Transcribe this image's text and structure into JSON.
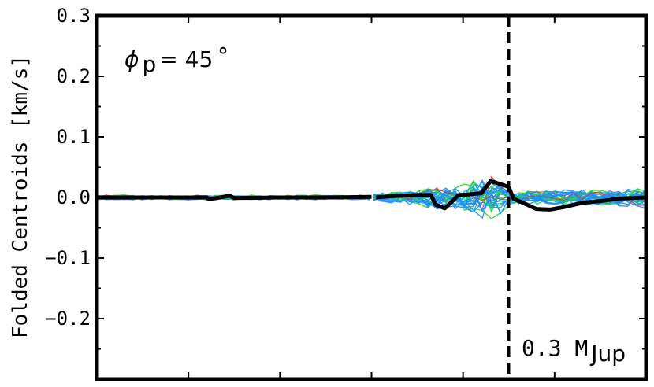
{
  "chart_data": {
    "type": "line",
    "title": "",
    "xlabel": "",
    "ylabel": "Folded Centroids [km/s]",
    "ylim": [
      -0.3,
      0.3
    ],
    "xlim": [
      0,
      6
    ],
    "yticks": [
      -0.2,
      -0.1,
      0.0,
      0.1,
      0.2,
      0.3
    ],
    "ytick_labels": [
      "−0.2",
      "−0.1",
      "0.0",
      "0.1",
      "0.2",
      "0.3"
    ],
    "xticks": [
      1,
      2,
      3,
      4,
      5
    ],
    "grid": false,
    "phase_annotation": {
      "phi_symbol": "ϕ",
      "phi_sub": "p",
      "equals": " = 45",
      "degree": "∘"
    },
    "mass_annotation": {
      "value": "0.3 M",
      "sub": "Jup"
    },
    "vline_x": 4.5,
    "mean_series": {
      "name": "",
      "color": "#000000",
      "segments": [
        [
          [
            0,
            0
          ],
          [
            0.5,
            0
          ],
          [
            1,
            0
          ],
          [
            1.2,
            0
          ],
          [
            1.22,
            -0.003
          ],
          [
            1.35,
            0
          ],
          [
            1.45,
            0.003
          ],
          [
            1.5,
            -0.001
          ],
          [
            2,
            0
          ],
          [
            2.5,
            0
          ],
          [
            3,
            0.001
          ]
        ],
        [
          [
            3.05,
            0
          ],
          [
            3.2,
            0.002
          ],
          [
            3.5,
            0.004
          ],
          [
            3.65,
            0.004
          ],
          [
            3.7,
            -0.012
          ],
          [
            3.8,
            -0.018
          ],
          [
            3.87,
            -0.008
          ],
          [
            3.95,
            0.004
          ],
          [
            4.05,
            0.005
          ],
          [
            4.2,
            0.007
          ],
          [
            4.3,
            0.027
          ],
          [
            4.45,
            0.02
          ],
          [
            4.5,
            0.017
          ],
          [
            4.55,
            -0.002
          ],
          [
            4.7,
            -0.012
          ],
          [
            4.8,
            -0.019
          ],
          [
            4.95,
            -0.02
          ],
          [
            5.1,
            -0.016
          ],
          [
            5.3,
            -0.009
          ],
          [
            5.5,
            -0.006
          ],
          [
            5.7,
            -0.002
          ],
          [
            5.85,
            -0.001
          ],
          [
            6,
            0
          ]
        ]
      ]
    },
    "realization_colors": {
      "blue": "#1e90ff",
      "green": "#22dd22",
      "red": "#e03020"
    }
  }
}
